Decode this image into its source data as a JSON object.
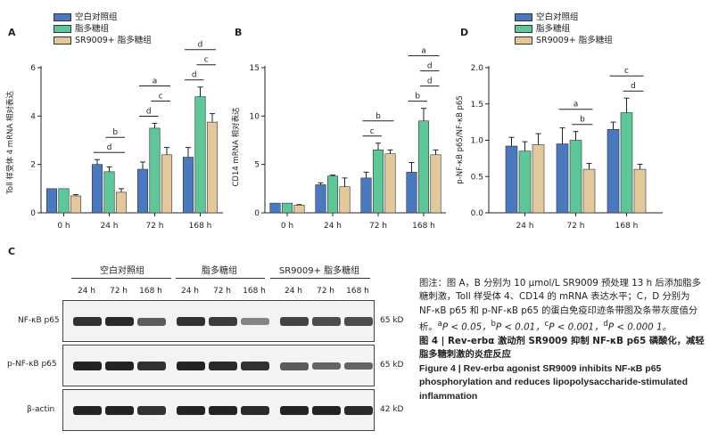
{
  "colors": {
    "control": "#4a79c0",
    "lps": "#5ec79a",
    "sr9009": "#e2c89b",
    "axis": "#222222",
    "blot_bg": "#f3f3f3",
    "band": "#1a1a1a"
  },
  "legend": {
    "control": "空白对照组",
    "lps": "脂多糖组",
    "sr9009": "SR9009+ 脂多糖组"
  },
  "panel_letters": {
    "a": "A",
    "b": "B",
    "c": "C",
    "d": "D"
  },
  "chart_data": [
    {
      "panel": "A",
      "type": "bar",
      "ylabel": "Toll 样受体 4 mRNA 相对表达",
      "xlabel": "",
      "categories": [
        "0 h",
        "24 h",
        "72 h",
        "168 h"
      ],
      "ylim": [
        0,
        6
      ],
      "yticks": [
        0,
        2,
        4,
        6
      ],
      "series": [
        {
          "name": "空白对照组",
          "values": [
            1.0,
            2.0,
            1.8,
            2.3
          ],
          "errors": [
            0.0,
            0.2,
            0.3,
            0.4
          ]
        },
        {
          "name": "脂多糖组",
          "values": [
            1.0,
            1.7,
            3.5,
            4.8
          ],
          "errors": [
            0.0,
            0.2,
            0.2,
            0.4
          ]
        },
        {
          "name": "SR9009+ 脂多糖组",
          "values": [
            0.7,
            0.85,
            2.4,
            3.75
          ],
          "errors": [
            0.05,
            0.15,
            0.3,
            0.35
          ]
        }
      ],
      "significance": [
        {
          "category": 1,
          "from": 0,
          "to": 2,
          "label": "d"
        },
        {
          "category": 1,
          "from": 1,
          "to": 2,
          "label": "b"
        },
        {
          "category": 2,
          "from": 0,
          "to": 1,
          "label": "d"
        },
        {
          "category": 2,
          "from": 1,
          "to": 2,
          "label": "c"
        },
        {
          "category": 2,
          "from": 0,
          "to": 2,
          "label": "a"
        },
        {
          "category": 3,
          "from": 0,
          "to": 1,
          "label": "d"
        },
        {
          "category": 3,
          "from": 1,
          "to": 2,
          "label": "c"
        },
        {
          "category": 3,
          "from": 0,
          "to": 2,
          "label": "d"
        }
      ]
    },
    {
      "panel": "B",
      "type": "bar",
      "ylabel": "CD14 mRNA 相对表达",
      "xlabel": "",
      "categories": [
        "0 h",
        "24 h",
        "72 h",
        "168 h"
      ],
      "ylim": [
        0,
        15
      ],
      "yticks": [
        0,
        5,
        10,
        15
      ],
      "series": [
        {
          "name": "空白对照组",
          "values": [
            1.0,
            2.9,
            3.6,
            4.2
          ],
          "errors": [
            0.0,
            0.2,
            0.6,
            1.0
          ]
        },
        {
          "name": "脂多糖组",
          "values": [
            1.0,
            3.8,
            6.5,
            9.5
          ],
          "errors": [
            0.0,
            0.1,
            0.7,
            1.3
          ]
        },
        {
          "name": "SR9009+ 脂多糖组",
          "values": [
            0.8,
            2.7,
            6.1,
            6.0
          ],
          "errors": [
            0.05,
            0.9,
            0.4,
            0.5
          ]
        }
      ],
      "significance": [
        {
          "category": 2,
          "from": 0,
          "to": 1,
          "label": "c"
        },
        {
          "category": 2,
          "from": 0,
          "to": 2,
          "label": "b"
        },
        {
          "category": 3,
          "from": 0,
          "to": 1,
          "label": "b"
        },
        {
          "category": 3,
          "from": 1,
          "to": 2,
          "label": "d"
        },
        {
          "category": 3,
          "from": 1,
          "to": 2,
          "label": "d"
        },
        {
          "category": 3,
          "from": 0,
          "to": 2,
          "label": "a"
        }
      ]
    },
    {
      "panel": "D",
      "type": "bar",
      "ylabel": "p-NF-κB p65/NF-κB p65",
      "xlabel": "",
      "categories": [
        "24 h",
        "72 h",
        "168 h"
      ],
      "ylim": [
        0,
        2.0
      ],
      "yticks": [
        0.0,
        0.5,
        1.0,
        1.5,
        2.0
      ],
      "series": [
        {
          "name": "空白对照组",
          "values": [
            0.92,
            0.95,
            1.15
          ],
          "errors": [
            0.12,
            0.22,
            0.1
          ]
        },
        {
          "name": "脂多糖组",
          "values": [
            0.85,
            1.0,
            1.38
          ],
          "errors": [
            0.13,
            0.12,
            0.2
          ]
        },
        {
          "name": "SR9009+ 脂多糖组",
          "values": [
            0.94,
            0.6,
            0.6
          ],
          "errors": [
            0.15,
            0.08,
            0.07
          ]
        }
      ],
      "significance": [
        {
          "category": 1,
          "from": 1,
          "to": 2,
          "label": "b"
        },
        {
          "category": 1,
          "from": 0,
          "to": 2,
          "label": "a"
        },
        {
          "category": 2,
          "from": 1,
          "to": 2,
          "label": "d"
        },
        {
          "category": 2,
          "from": 0,
          "to": 2,
          "label": "c"
        }
      ]
    }
  ],
  "western": {
    "groups": [
      "空白对照组",
      "脂多糖组",
      "SR9009+ 脂多糖组"
    ],
    "times": [
      "24 h",
      "72 h",
      "168 h"
    ],
    "rows": [
      {
        "label": "NF-κB p65",
        "kd": "65 kD",
        "intensities": [
          0.85,
          0.9,
          0.6,
          0.85,
          0.8,
          0.35,
          0.75,
          0.7,
          0.7
        ]
      },
      {
        "label": "p-NF-κB p65",
        "kd": "65 kD",
        "intensities": [
          0.95,
          0.95,
          0.85,
          0.95,
          0.9,
          0.85,
          0.6,
          0.55,
          0.55
        ]
      },
      {
        "label": "β-actin",
        "kd": "42 kD",
        "intensities": [
          0.95,
          0.95,
          0.85,
          0.95,
          0.95,
          0.9,
          0.95,
          0.95,
          0.9
        ]
      }
    ]
  },
  "caption": {
    "line1": "图注：图 A，B 分别为 10 μmol/L SR9009 预处理 13 h 后添加脂多糖刺激，Toll 样受体 4、CD14 的 mRNA 表达水平；C，D 分别为 NF-κB p65 和 p-NF-κB p65 的蛋白免疫印迹条带图及条带灰度值分析。",
    "sig_a_sup": "a",
    "sig_a": "P < 0.05，",
    "sig_b_sup": "b",
    "sig_b": "P < 0.01，",
    "sig_c_sup": "c",
    "sig_c": "P < 0.001，",
    "sig_d_sup": "d",
    "sig_d": "P < 0.000 1。",
    "title_cn": "图 4 | Rev-erbα 激动剂 SR9009 抑制 NF-κB p65 磷酸化，减轻脂多糖刺激的炎症反应",
    "title_en": "Figure 4 | Rev-erbα agonist SR9009 inhibits NF-κB p65 phosphorylation and reduces lipopolysaccharide-stimulated inflammation"
  }
}
